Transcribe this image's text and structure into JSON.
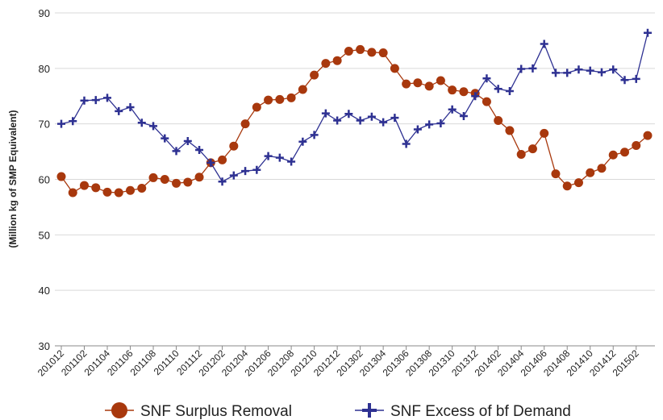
{
  "chart_data": {
    "type": "line",
    "y_label": "(Million kg of SMP Equivalent)",
    "categories": [
      "201012",
      null,
      "201102",
      null,
      "201104",
      null,
      "201106",
      null,
      "201108",
      null,
      "201110",
      null,
      "201112",
      null,
      "201202",
      null,
      "201204",
      null,
      "201206",
      null,
      "201208",
      null,
      "201210",
      null,
      "201212",
      null,
      "201302",
      null,
      "201304",
      null,
      "201306",
      null,
      "201308",
      null,
      "201310",
      null,
      "201312",
      null,
      "201402",
      null,
      "201404",
      null,
      "201406",
      null,
      "201408",
      null,
      "201410",
      null,
      "201412",
      null,
      "201502",
      null
    ],
    "series": [
      {
        "name": "SNF Surplus Removal",
        "color": "#a8380d",
        "marker": "circle",
        "values": [
          60.5,
          57.6,
          58.9,
          58.5,
          57.7,
          57.6,
          58.0,
          58.4,
          60.3,
          60.0,
          59.3,
          59.5,
          60.4,
          63.0,
          63.5,
          66.0,
          70.0,
          73.0,
          74.3,
          74.4,
          74.7,
          76.2,
          78.8,
          80.9,
          81.4,
          83.1,
          83.4,
          82.9,
          82.8,
          80.0,
          77.2,
          77.4,
          76.8,
          77.8,
          76.1,
          75.8,
          75.5,
          74.0,
          70.6,
          68.8,
          64.5,
          65.5,
          68.3,
          61.0,
          58.8,
          59.4,
          61.2,
          62.0,
          64.4,
          64.9,
          66.1,
          67.9
        ]
      },
      {
        "name": "SNF Excess of bf Demand",
        "color": "#2e3192",
        "marker": "plus",
        "values": [
          70.0,
          70.5,
          74.2,
          74.3,
          74.7,
          72.3,
          73.0,
          70.2,
          69.6,
          67.4,
          65.1,
          66.9,
          65.3,
          63.0,
          59.6,
          60.7,
          61.5,
          61.7,
          64.2,
          63.9,
          63.2,
          66.8,
          68.0,
          71.9,
          70.6,
          71.8,
          70.6,
          71.3,
          70.3,
          71.1,
          66.4,
          69.0,
          69.9,
          70.1,
          72.6,
          71.4,
          75.0,
          78.2,
          76.3,
          75.9,
          79.9,
          80.0,
          84.4,
          79.2,
          79.2,
          79.8,
          79.6,
          79.3,
          79.8,
          77.9,
          78.1,
          86.4
        ]
      }
    ],
    "ylim": [
      30,
      90
    ],
    "yticks": [
      30,
      40,
      50,
      60,
      70,
      80,
      90
    ],
    "grid": true,
    "legend": "bottom"
  }
}
